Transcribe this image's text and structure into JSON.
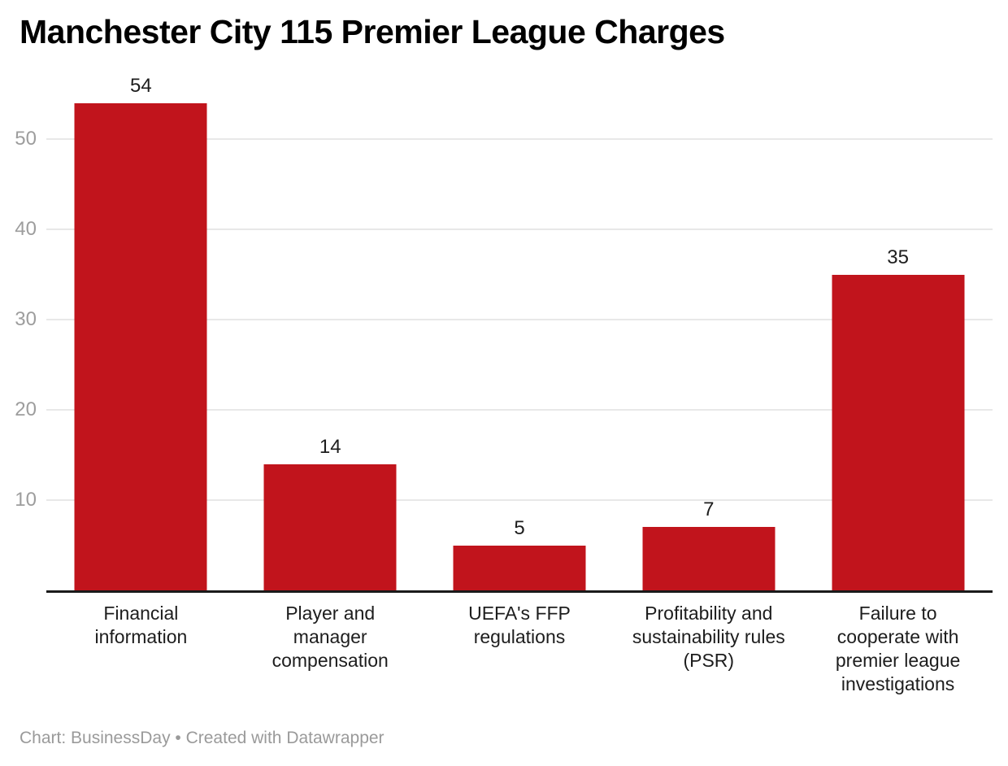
{
  "chart_data": {
    "type": "bar",
    "title": "Manchester City 115 Premier League Charges",
    "categories": [
      "Financial information",
      "Player and manager compensation",
      "UEFA's FFP regulations",
      "Profitability and sustainability rules (PSR)",
      "Failure to cooperate with premier league investigations"
    ],
    "values": [
      54,
      14,
      5,
      7,
      35
    ],
    "value_labels": [
      "54",
      "14",
      "5",
      "7",
      "35"
    ],
    "y_ticks": [
      10,
      20,
      30,
      40,
      50
    ],
    "ylim": [
      0,
      54
    ],
    "grid": true,
    "legend": "none",
    "xlabel": "",
    "ylabel": ""
  },
  "footer": {
    "text": "Chart: BusinessDay • Created with Datawrapper"
  },
  "colors": {
    "bar": "#c1141c",
    "gridline": "#e8e8e8",
    "axis_line": "#1a1a1a",
    "tick_text": "#9d9d9d",
    "label_text": "#1d1d1d",
    "value_text": "#1d1d1d",
    "footer_text": "#9a9a9a",
    "title_text": "#000000",
    "background": "#ffffff"
  }
}
